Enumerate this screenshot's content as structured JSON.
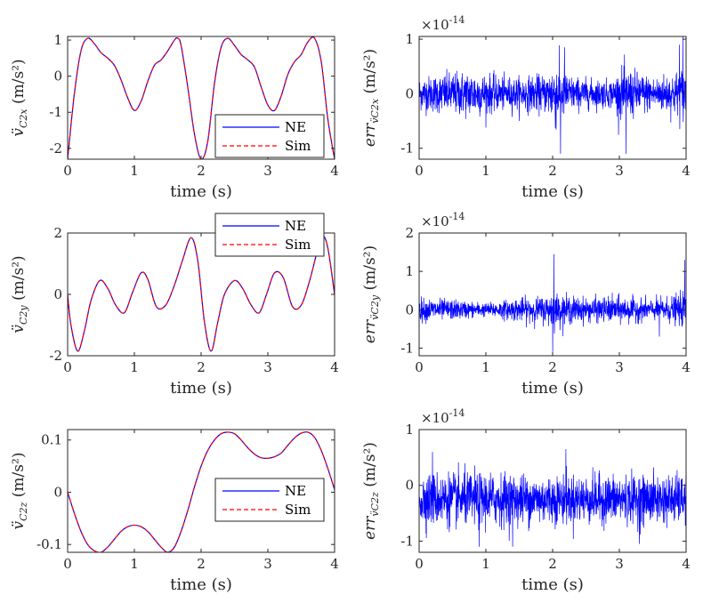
{
  "chart_data": [
    {
      "id": "ax1",
      "type": "line",
      "ylabel_main": "v̈",
      "ylabel_sub": "C2x",
      "ylabel_units": "(m/s²)",
      "xlabel": "time (s)",
      "xlim": [
        0,
        4
      ],
      "ylim": [
        -2.3,
        1.1
      ],
      "xticks": [
        0,
        1,
        2,
        3,
        4
      ],
      "yticks": [
        -2,
        -1,
        0,
        1
      ],
      "xtick_labels": [
        "0",
        "1",
        "2",
        "3",
        "4"
      ],
      "ytick_labels": [
        "-2",
        "-1",
        "0",
        "1"
      ],
      "legend": {
        "position": "bottom-right",
        "entries": [
          "NE",
          "Sim"
        ]
      },
      "series": [
        {
          "name": "NE",
          "color": "#0000ff",
          "dash": "solid",
          "x": [
            0,
            0.1,
            0.2,
            0.3,
            0.4,
            0.5,
            0.6,
            0.7,
            0.8,
            0.9,
            1.0,
            1.1,
            1.2,
            1.3,
            1.4,
            1.5,
            1.6,
            1.65,
            1.7,
            1.8,
            1.9,
            2.0,
            2.1,
            2.2,
            2.3,
            2.4,
            2.5,
            2.6,
            2.7,
            2.8,
            2.9,
            3.0,
            3.1,
            3.2,
            3.3,
            3.4,
            3.5,
            3.6,
            3.7,
            3.8,
            3.9,
            4.0
          ],
          "y": [
            -2.3,
            -0.5,
            0.7,
            1.05,
            0.9,
            0.65,
            0.5,
            0.3,
            -0.1,
            -0.6,
            -0.95,
            -0.7,
            -0.15,
            0.3,
            0.45,
            0.7,
            1.0,
            1.05,
            0.85,
            -0.3,
            -1.6,
            -2.3,
            -1.8,
            -0.2,
            0.8,
            1.05,
            0.85,
            0.6,
            0.45,
            0.25,
            -0.3,
            -0.8,
            -0.95,
            -0.55,
            0.05,
            0.4,
            0.6,
            0.95,
            1.05,
            0.4,
            -1.2,
            -2.3
          ]
        },
        {
          "name": "Sim",
          "color": "#ff0000",
          "dash": "dashed",
          "same_as": "NE"
        }
      ]
    },
    {
      "id": "ax2",
      "type": "line",
      "ylabel_main": "err",
      "ylabel_sub": "v̈C2x",
      "ylabel_units": "(m/s²)",
      "xlabel": "time (s)",
      "xlim": [
        0,
        4
      ],
      "ylim": [
        -1.2,
        1.05
      ],
      "xticks": [
        0,
        1,
        2,
        3,
        4
      ],
      "yticks": [
        -1,
        0,
        1
      ],
      "xtick_labels": [
        "0",
        "1",
        "2",
        "3",
        "4"
      ],
      "ytick_labels": [
        "-1",
        "0",
        "1"
      ],
      "exponent_label": "×10",
      "exponent_power": "-14",
      "series": [
        {
          "name": "err",
          "color": "#0000ff",
          "noise_envelope": {
            "x": [
              0,
              0.5,
              0.8,
              1.2,
              1.5,
              1.9,
              2.05,
              2.15,
              2.3,
              2.6,
              2.9,
              3.05,
              3.2,
              3.5,
              3.8,
              4.0
            ],
            "amp": [
              0.35,
              0.45,
              0.5,
              0.35,
              0.35,
              0.4,
              0.75,
              0.55,
              0.35,
              0.3,
              0.3,
              0.55,
              0.5,
              0.35,
              0.45,
              0.6
            ]
          },
          "spikes": [
            {
              "x": 2.12,
              "y": -1.1
            },
            {
              "x": 2.18,
              "y": 0.85
            },
            {
              "x": 3.1,
              "y": -1.1
            },
            {
              "x": 3.95,
              "y": 1.05
            },
            {
              "x": 3.9,
              "y": 0.9
            }
          ]
        }
      ]
    },
    {
      "id": "ax3",
      "type": "line",
      "ylabel_main": "v̈",
      "ylabel_sub": "C2y",
      "ylabel_units": "(m/s²)",
      "xlabel": "time (s)",
      "xlim": [
        0,
        4
      ],
      "ylim": [
        -2.0,
        2.0
      ],
      "xticks": [
        0,
        1,
        2,
        3,
        4
      ],
      "yticks": [
        -2,
        0,
        2
      ],
      "xtick_labels": [
        "0",
        "1",
        "2",
        "3",
        "4"
      ],
      "ytick_labels": [
        "-2",
        "0",
        "2"
      ],
      "legend": {
        "position": "top-right",
        "entries": [
          "NE",
          "Sim"
        ]
      },
      "series": [
        {
          "name": "NE",
          "color": "#0000ff",
          "dash": "solid",
          "x": [
            0,
            0.05,
            0.15,
            0.25,
            0.35,
            0.48,
            0.6,
            0.72,
            0.85,
            0.97,
            1.1,
            1.2,
            1.33,
            1.47,
            1.6,
            1.72,
            1.85,
            1.95,
            2.05,
            2.15,
            2.25,
            2.35,
            2.5,
            2.62,
            2.75,
            2.87,
            2.98,
            3.1,
            3.23,
            3.37,
            3.5,
            3.62,
            3.74,
            3.82,
            3.9,
            4.0
          ],
          "y": [
            0.0,
            -1.0,
            -1.85,
            -1.2,
            -0.2,
            0.45,
            0.2,
            -0.35,
            -0.6,
            0.05,
            0.7,
            0.5,
            -0.4,
            -0.35,
            0.3,
            1.1,
            1.85,
            1.1,
            -0.9,
            -1.85,
            -0.9,
            0.0,
            0.45,
            0.2,
            -0.35,
            -0.6,
            0.0,
            0.7,
            0.55,
            -0.4,
            -0.35,
            0.4,
            1.4,
            1.9,
            1.5,
            0.0
          ]
        },
        {
          "name": "Sim",
          "color": "#ff0000",
          "dash": "dashed",
          "same_as": "NE"
        }
      ]
    },
    {
      "id": "ax4",
      "type": "line",
      "ylabel_main": "err",
      "ylabel_sub": "v̈C2y",
      "ylabel_units": "(m/s²)",
      "xlabel": "time (s)",
      "xlim": [
        0,
        4
      ],
      "ylim": [
        -1.2,
        2.0
      ],
      "xticks": [
        0,
        1,
        2,
        3,
        4
      ],
      "yticks": [
        -1,
        0,
        1,
        2
      ],
      "xtick_labels": [
        "0",
        "1",
        "2",
        "3",
        "4"
      ],
      "ytick_labels": [
        "-1",
        "0",
        "1",
        "2"
      ],
      "exponent_label": "×10",
      "exponent_power": "-14",
      "series": [
        {
          "name": "err",
          "color": "#0000ff",
          "noise_envelope": {
            "x": [
              0,
              0.5,
              1.0,
              1.5,
              1.9,
              2.0,
              2.1,
              2.5,
              3.0,
              3.5,
              3.9,
              4.0
            ],
            "amp": [
              0.35,
              0.3,
              0.2,
              0.35,
              0.4,
              0.55,
              0.45,
              0.35,
              0.4,
              0.3,
              0.45,
              0.6
            ]
          },
          "spikes": [
            {
              "x": 2.02,
              "y": 1.45
            },
            {
              "x": 2.0,
              "y": -1.1
            },
            {
              "x": 3.98,
              "y": 1.3
            },
            {
              "x": 3.6,
              "y": -0.7
            }
          ]
        }
      ]
    },
    {
      "id": "ax5",
      "type": "line",
      "ylabel_main": "v̈",
      "ylabel_sub": "C2z",
      "ylabel_units": "(m/s²)",
      "xlabel": "time (s)",
      "xlim": [
        0,
        4
      ],
      "ylim": [
        -0.115,
        0.12
      ],
      "xticks": [
        0,
        1,
        2,
        3,
        4
      ],
      "yticks": [
        -0.1,
        0,
        0.1
      ],
      "xtick_labels": [
        "0",
        "1",
        "2",
        "3",
        "4"
      ],
      "ytick_labels": [
        "-0.1",
        "0",
        "0.1"
      ],
      "legend": {
        "position": "right",
        "entries": [
          "NE",
          "Sim"
        ]
      },
      "series": [
        {
          "name": "NE",
          "color": "#0000ff",
          "dash": "solid",
          "x": [
            0,
            0.1,
            0.2,
            0.3,
            0.4,
            0.5,
            0.6,
            0.7,
            0.8,
            0.9,
            1.0,
            1.1,
            1.2,
            1.3,
            1.4,
            1.5,
            1.6,
            1.7,
            1.8,
            1.9,
            2.0,
            2.1,
            2.2,
            2.3,
            2.4,
            2.5,
            2.6,
            2.7,
            2.8,
            2.9,
            3.0,
            3.1,
            3.2,
            3.3,
            3.4,
            3.5,
            3.6,
            3.7,
            3.8,
            3.9,
            4.0
          ],
          "y": [
            0.0,
            -0.04,
            -0.075,
            -0.1,
            -0.112,
            -0.115,
            -0.105,
            -0.09,
            -0.075,
            -0.066,
            -0.063,
            -0.066,
            -0.075,
            -0.09,
            -0.105,
            -0.115,
            -0.105,
            -0.075,
            -0.035,
            0.01,
            0.05,
            0.08,
            0.1,
            0.112,
            0.115,
            0.112,
            0.1,
            0.085,
            0.073,
            0.066,
            0.065,
            0.068,
            0.075,
            0.09,
            0.104,
            0.113,
            0.115,
            0.105,
            0.08,
            0.045,
            0.005
          ]
        },
        {
          "name": "Sim",
          "color": "#ff0000",
          "dash": "dashed",
          "same_as": "NE"
        }
      ]
    },
    {
      "id": "ax6",
      "type": "line",
      "ylabel_main": "err",
      "ylabel_sub": "v̈C2z",
      "ylabel_units": "(m/s²)",
      "xlabel": "time (s)",
      "xlim": [
        0,
        4
      ],
      "ylim": [
        -1.2,
        1.0
      ],
      "xticks": [
        0,
        1,
        2,
        3,
        4
      ],
      "yticks": [
        -1,
        0,
        1
      ],
      "xtick_labels": [
        "0",
        "1",
        "2",
        "3",
        "4"
      ],
      "ytick_labels": [
        "-1",
        "0",
        "1"
      ],
      "exponent_label": "×10",
      "exponent_power": "-14",
      "series": [
        {
          "name": "err",
          "color": "#0000ff",
          "noise_envelope": {
            "x": [
              0,
              1.0,
              2.0,
              3.0,
              4.0
            ],
            "amp": [
              0.55,
              0.55,
              0.5,
              0.5,
              0.5
            ]
          },
          "center": -0.25,
          "spikes": [
            {
              "x": 0.2,
              "y": 0.6
            },
            {
              "x": 1.4,
              "y": -1.1
            },
            {
              "x": 2.2,
              "y": 0.65
            },
            {
              "x": 3.3,
              "y": -1.05
            },
            {
              "x": 0.9,
              "y": -1.1
            }
          ]
        }
      ]
    }
  ]
}
